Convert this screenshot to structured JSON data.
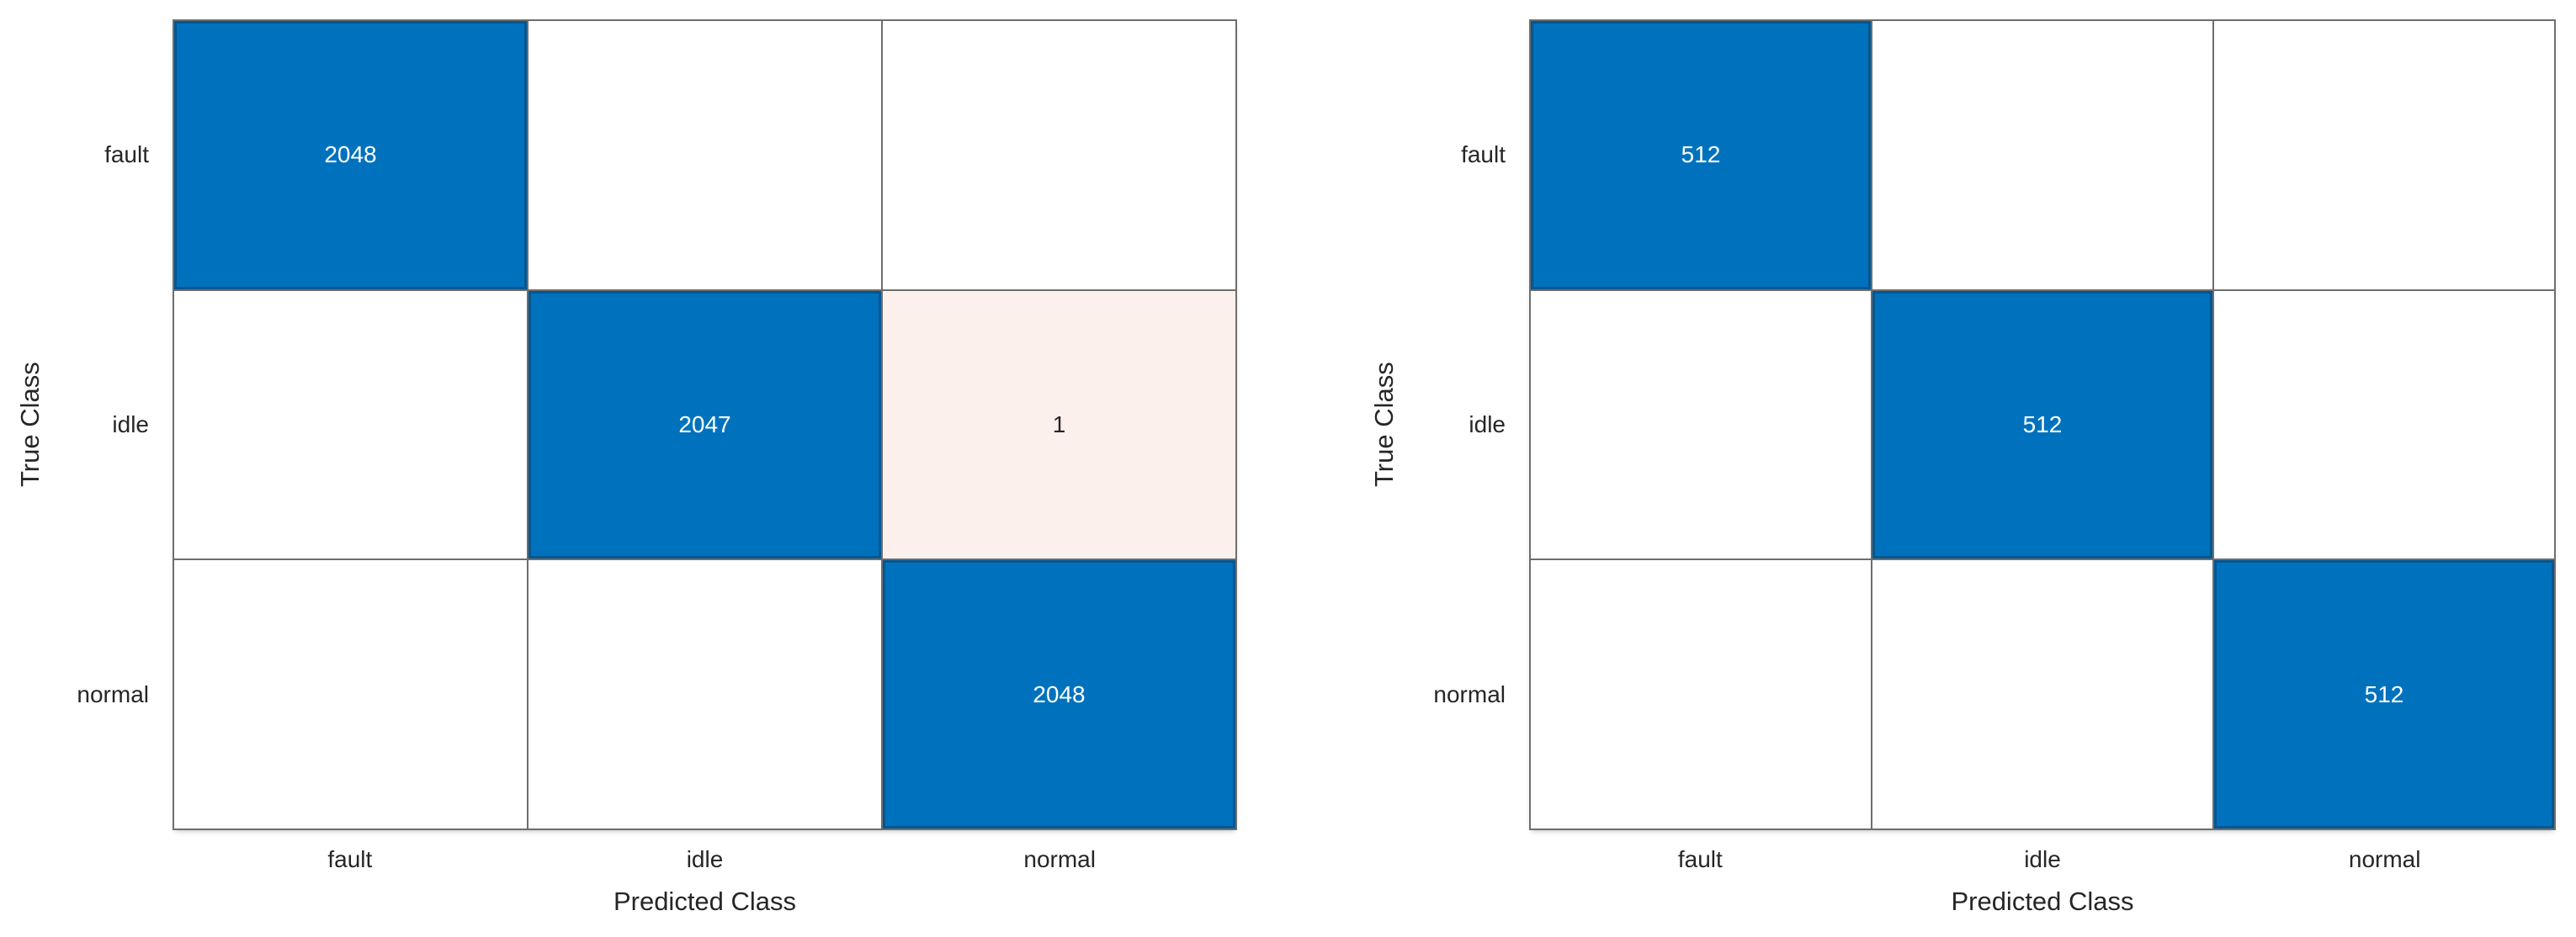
{
  "figure": {
    "background_color": "#FFFFFF",
    "grid_line_color": "#6E6E6E",
    "diagonal_cell_color": "#0072BD",
    "diagonal_cell_text_color": "#FFFFFF",
    "offdiagonal_highlight_color": "#FBF0EC",
    "text_color": "#262626"
  },
  "charts": [
    {
      "xlabel": "Predicted Class",
      "ylabel": "True Class",
      "classes": [
        "fault",
        "idle",
        "normal"
      ],
      "matrix": [
        [
          2048,
          0,
          0
        ],
        [
          0,
          2047,
          1
        ],
        [
          0,
          0,
          2048
        ]
      ]
    },
    {
      "xlabel": "Predicted Class",
      "ylabel": "True Class",
      "classes": [
        "fault",
        "idle",
        "normal"
      ],
      "matrix": [
        [
          512,
          0,
          0
        ],
        [
          0,
          512,
          0
        ],
        [
          0,
          0,
          512
        ]
      ]
    }
  ],
  "chart_data": [
    {
      "type": "heatmap",
      "subtype": "confusion-matrix",
      "title": "",
      "xlabel": "Predicted Class",
      "ylabel": "True Class",
      "x_categories": [
        "fault",
        "idle",
        "normal"
      ],
      "y_categories": [
        "fault",
        "idle",
        "normal"
      ],
      "matrix": [
        [
          2048,
          0,
          0
        ],
        [
          0,
          2047,
          1
        ],
        [
          0,
          0,
          2048
        ]
      ],
      "value_labels_shown": [
        "2048",
        "2047",
        "1",
        "2048"
      ],
      "legend": "none",
      "grid": "on"
    },
    {
      "type": "heatmap",
      "subtype": "confusion-matrix",
      "title": "",
      "xlabel": "Predicted Class",
      "ylabel": "True Class",
      "x_categories": [
        "fault",
        "idle",
        "normal"
      ],
      "y_categories": [
        "fault",
        "idle",
        "normal"
      ],
      "matrix": [
        [
          512,
          0,
          0
        ],
        [
          0,
          512,
          0
        ],
        [
          0,
          0,
          512
        ]
      ],
      "value_labels_shown": [
        "512",
        "512",
        "512"
      ],
      "legend": "none",
      "grid": "on"
    }
  ]
}
